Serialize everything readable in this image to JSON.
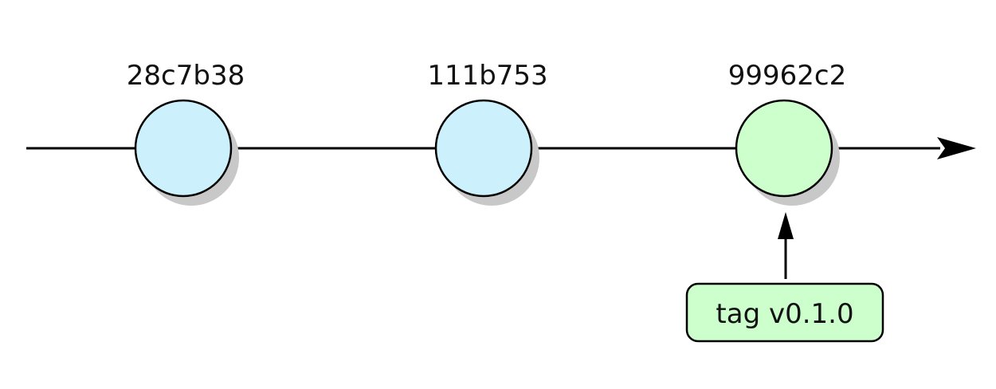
{
  "commits": [
    {
      "id": "28c7b38",
      "fill": "#cdf0fd"
    },
    {
      "id": "111b753",
      "fill": "#cdf0fd"
    },
    {
      "id": "99962c2",
      "fill": "#ccffcc"
    }
  ],
  "tag": {
    "label": "tag v0.1.0",
    "fill": "#ccffcc",
    "points_to": "99962c2"
  },
  "colors": {
    "stroke": "#000000",
    "shadow": "#c8c8c8",
    "background": "#ffffff"
  }
}
